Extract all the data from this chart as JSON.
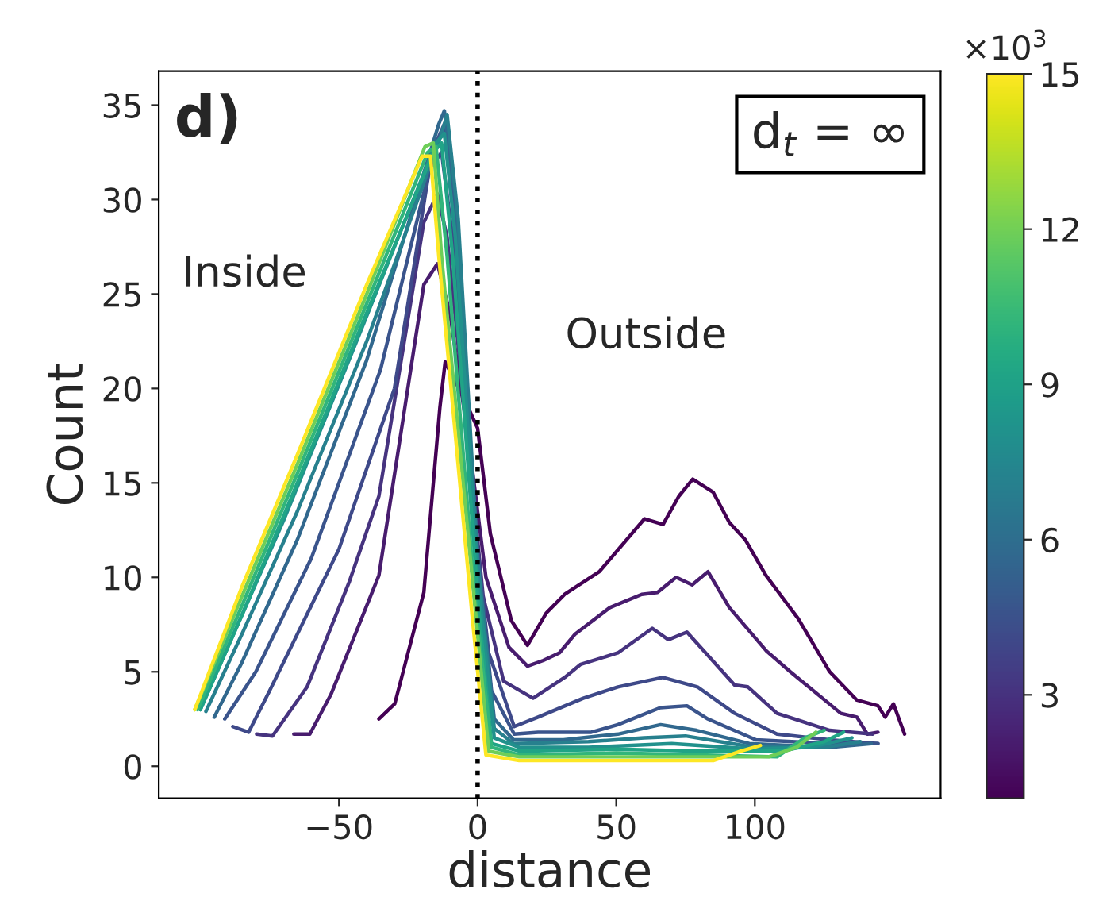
{
  "chart_data": {
    "type": "line",
    "xlabel": "distance",
    "ylabel": "Count",
    "annotations": [
      "d)",
      "Inside",
      "Outside",
      "d$_{t}$ = ∞",
      "×10$^{3}$"
    ],
    "xlim": [
      -115,
      167
    ],
    "ylim": [
      -1.7,
      36.8
    ],
    "xticks": [
      {
        "value": -50,
        "label": "−50"
      },
      0,
      50,
      100
    ],
    "yticks": [
      0,
      5,
      10,
      15,
      20,
      25,
      30,
      35
    ],
    "clim": [
      1,
      15
    ],
    "cticks": [
      3,
      6,
      9,
      12,
      15
    ],
    "grid": false,
    "ref_lines": [
      {
        "axis": "x",
        "value": 0,
        "color": "#000000",
        "line_style": "dotted"
      }
    ],
    "series": [
      {
        "color": "#440154",
        "x": [
          -35.6,
          -29.9,
          -19.4,
          -13.6,
          -11.7,
          -5,
          0,
          4.6,
          12.2,
          18,
          24.7,
          31.4,
          43.9,
          60.2,
          66.9,
          72.6,
          77.6,
          85,
          90.8,
          96.5,
          104,
          115.7,
          127,
          136.8,
          144.4,
          147,
          150,
          154
        ],
        "values": [
          2.5,
          3.3,
          9.2,
          19.0,
          21.4,
          19.5,
          17.9,
          12.3,
          7.7,
          6.4,
          8.1,
          9.1,
          10.3,
          13.1,
          12.8,
          14.3,
          15.2,
          14.5,
          12.9,
          12.0,
          10.1,
          7.8,
          5.0,
          3.5,
          3.2,
          2.6,
          3.3,
          1.7
        ]
      },
      {
        "color": "#481c6e",
        "x": [
          -66.3,
          -60.5,
          -52.9,
          -35.6,
          -19.4,
          -14.5,
          -10,
          -3,
          3,
          11.3,
          18,
          23.7,
          29.5,
          35.2,
          47.7,
          59.2,
          64.9,
          71.6,
          77.4,
          83.1,
          90.8,
          104.2,
          112.8,
          131,
          136.8,
          140.6,
          144.4
        ],
        "values": [
          1.7,
          1.7,
          3.8,
          10.1,
          25.5,
          26.6,
          24,
          17,
          10,
          6.3,
          5.3,
          5.6,
          6.0,
          7.0,
          8.4,
          9.1,
          9.2,
          10.0,
          9.6,
          10.3,
          8.4,
          6.1,
          5.0,
          2.8,
          2.6,
          1.7,
          1.8
        ]
      },
      {
        "color": "#46337f",
        "x": [
          -79.7,
          -74,
          -61.5,
          -46.2,
          -35.6,
          -19.4,
          -14.5,
          -11,
          -4,
          2,
          9.4,
          20,
          31.4,
          37.2,
          50.6,
          63,
          68.8,
          75.5,
          92.7,
          97.5,
          108,
          127,
          142.5
        ],
        "values": [
          1.7,
          1.6,
          4.2,
          9.8,
          14.3,
          28.8,
          30.3,
          28,
          18,
          9,
          4.5,
          3.6,
          4.7,
          5.4,
          6.0,
          7.3,
          6.7,
          7.1,
          4.3,
          4.2,
          2.8,
          1.9,
          1.7
        ]
      },
      {
        "color": "#3e4989",
        "x": [
          -88.3,
          -82.6,
          -75,
          -50,
          -30,
          -17.4,
          -13,
          -9,
          -2,
          4,
          13.2,
          21.8,
          38.1,
          50.6,
          66.8,
          79.3,
          92.7,
          108,
          127,
          144.4
        ],
        "values": [
          2.1,
          1.8,
          4,
          11.5,
          20,
          31.6,
          32.5,
          28,
          14,
          6,
          2.1,
          2.6,
          3.6,
          4.2,
          4.7,
          4.2,
          2.8,
          1.7,
          1.4,
          1.2
        ]
      },
      {
        "color": "#3a548c",
        "x": [
          -91.2,
          -80,
          -60,
          -35,
          -15,
          -12,
          -8,
          -1,
          5,
          13.2,
          21.8,
          41,
          50.6,
          65.9,
          75.5,
          83.1,
          100.4,
          127,
          144.4
        ],
        "values": [
          2.5,
          5,
          11,
          21,
          33,
          34,
          29,
          13,
          4,
          1.7,
          1.8,
          1.8,
          2.2,
          3.1,
          3.2,
          2.5,
          1.4,
          1.2,
          1.2
        ]
      },
      {
        "color": "#31688e",
        "x": [
          -95,
          -85,
          -65,
          -40,
          -14,
          -12,
          -8,
          -1,
          6,
          13,
          31,
          50.6,
          66,
          79,
          98,
          127,
          142
        ],
        "values": [
          2.6,
          5.5,
          12,
          21.5,
          34,
          34.7,
          30,
          12,
          2.5,
          1.4,
          1.4,
          1.7,
          2.2,
          1.9,
          1.2,
          1.0,
          1.2
        ]
      },
      {
        "color": "#27808e",
        "x": [
          -98,
          -85,
          -65,
          -40,
          -13,
          -11,
          -7,
          0,
          6,
          13,
          40,
          60,
          75,
          100,
          125,
          138
        ],
        "values": [
          2.9,
          7,
          13.5,
          22.5,
          33.5,
          34.5,
          29,
          11,
          2,
          1.2,
          1.3,
          1.5,
          1.6,
          1.0,
          1.0,
          1.3
        ]
      },
      {
        "color": "#21918c",
        "x": [
          -100,
          -88,
          -70,
          -45,
          -15,
          -12,
          -8,
          0,
          6,
          15,
          40,
          70,
          100,
          120,
          135
        ],
        "values": [
          3.0,
          7,
          13,
          22,
          33,
          33.5,
          28,
          10,
          1.5,
          1.0,
          1.0,
          1.2,
          0.9,
          1.0,
          1.5
        ]
      },
      {
        "color": "#20a486",
        "x": [
          -100,
          -85,
          -65,
          -40,
          -16,
          -13,
          -9,
          0,
          5,
          15,
          50,
          80,
          110,
          125,
          132
        ],
        "values": [
          3.0,
          8,
          15,
          24,
          32.5,
          33,
          27,
          9,
          1.2,
          0.8,
          0.9,
          0.8,
          0.8,
          1.3,
          1.8
        ]
      },
      {
        "color": "#31b57b",
        "x": [
          -101,
          -85,
          -65,
          -40,
          -18,
          -15,
          -11,
          -1,
          5,
          15,
          50,
          80,
          108,
          118,
          125
        ],
        "values": [
          3.0,
          8.5,
          15.5,
          24.5,
          32.5,
          32.8,
          27,
          9,
          1,
          0.6,
          0.7,
          0.6,
          0.5,
          1.5,
          1.9
        ]
      },
      {
        "color": "#6ece58",
        "x": [
          -102,
          -85,
          -65,
          -40,
          -19,
          -16,
          -13,
          -1,
          4,
          15,
          50,
          80,
          105,
          115,
          122
        ],
        "values": [
          3.0,
          9,
          16,
          25,
          32.8,
          33,
          27,
          8.5,
          0.8,
          0.5,
          0.5,
          0.5,
          0.5,
          1.0,
          1.8
        ]
      },
      {
        "color": "#fde725",
        "x": [
          -102,
          -85,
          -65,
          -40,
          -20,
          -17,
          -14,
          -2,
          3,
          15,
          50,
          85,
          95,
          102
        ],
        "values": [
          3.0,
          9.5,
          16.5,
          25.5,
          32.3,
          32.3,
          27,
          8,
          0.6,
          0.3,
          0.3,
          0.3,
          0.8,
          1.1
        ]
      }
    ]
  }
}
